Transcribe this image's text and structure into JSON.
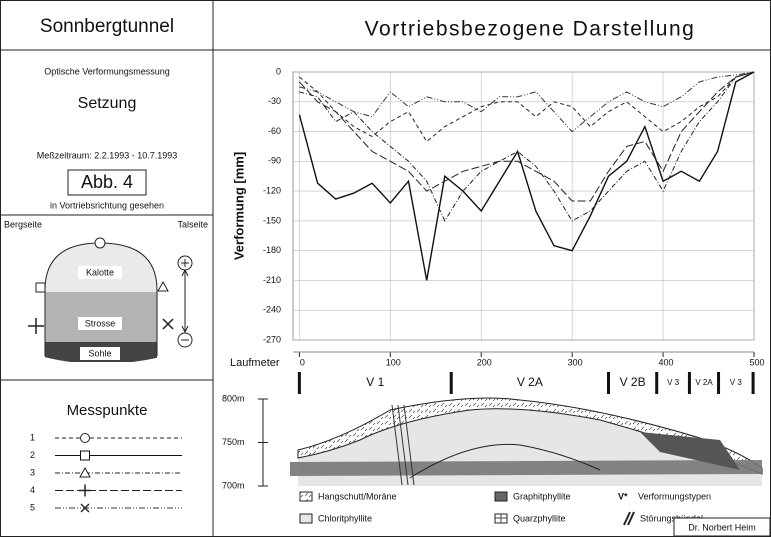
{
  "header": {
    "left_title": "Sonnbergtunnel",
    "right_title": "Vortriebsbezogene Darstellung"
  },
  "info": {
    "method": "Optische Verformungsmessung",
    "quantity": "Setzung",
    "period": "Meßzeitraum:  2.2.1993 - 10.7.1993",
    "figure": "Abb. 4",
    "direction": "in Vortriebsrichtung gesehen"
  },
  "section": {
    "left": "Bergseite",
    "right": "Talseite",
    "top": "Kalotte",
    "middle": "Strosse",
    "bottom": "Sohle"
  },
  "legend_title": "Messpunkte",
  "chart_data": {
    "type": "line",
    "y_label": "Verformung [mm]",
    "x_label": "Laufmeter",
    "x": [
      0,
      20,
      40,
      60,
      80,
      100,
      120,
      140,
      160,
      180,
      200,
      220,
      240,
      260,
      280,
      300,
      320,
      340,
      360,
      380,
      400,
      420,
      440,
      460,
      480,
      500
    ],
    "xlim": [
      -7,
      500
    ],
    "xticks": [
      0,
      100,
      200,
      300,
      400,
      500
    ],
    "ylim": [
      -270,
      0
    ],
    "yticks": [
      0,
      -30,
      -60,
      -90,
      -120,
      -150,
      -180,
      -210,
      -240,
      -270
    ],
    "grid": true,
    "series": [
      {
        "name": "1",
        "color": "#222",
        "dash": "4 3",
        "marker": "circle",
        "values": [
          -5,
          -20,
          -40,
          -55,
          -65,
          -50,
          -40,
          -70,
          -55,
          -45,
          -35,
          -30,
          -30,
          -45,
          -30,
          -35,
          -55,
          -40,
          -30,
          -45,
          -60,
          -50,
          -35,
          -25,
          -5,
          0
        ]
      },
      {
        "name": "2",
        "color": "#111",
        "dash": "",
        "marker": "square",
        "values": [
          -43,
          -112,
          -128,
          -122,
          -112,
          -132,
          -110,
          -210,
          -105,
          -120,
          -140,
          -110,
          -80,
          -140,
          -175,
          -180,
          -145,
          -105,
          -90,
          -55,
          -110,
          -100,
          -110,
          -80,
          -10,
          0
        ]
      },
      {
        "name": "3",
        "color": "#222",
        "dash": "5 2 1 2",
        "marker": "triangle",
        "values": [
          -20,
          -25,
          -50,
          -40,
          -60,
          -75,
          -90,
          -110,
          -150,
          -120,
          -100,
          -90,
          -80,
          -95,
          -120,
          -150,
          -140,
          -120,
          -100,
          -90,
          -120,
          -80,
          -50,
          -30,
          -5,
          0
        ]
      },
      {
        "name": "4",
        "color": "#222",
        "dash": "8 3",
        "marker": "cross",
        "values": [
          -10,
          -30,
          -40,
          -60,
          -80,
          -90,
          -100,
          -120,
          -110,
          -100,
          -95,
          -90,
          -90,
          -100,
          -110,
          -130,
          -130,
          -100,
          -75,
          -70,
          -100,
          -60,
          -40,
          -20,
          -5,
          0
        ]
      },
      {
        "name": "5",
        "color": "#333",
        "dash": "6 2 1 2 1 2",
        "marker": "x",
        "values": [
          -15,
          -20,
          -30,
          -40,
          -45,
          -20,
          -35,
          -25,
          -30,
          -30,
          -40,
          -25,
          -25,
          -20,
          -40,
          -60,
          -45,
          -30,
          -20,
          -30,
          -35,
          -25,
          -10,
          -5,
          -3,
          0
        ]
      }
    ],
    "zones": [
      {
        "label": "V 1",
        "from": 0,
        "to": 167
      },
      {
        "label": "V 2A",
        "from": 167,
        "to": 340
      },
      {
        "label": "V 2B",
        "from": 340,
        "to": 393
      },
      {
        "label": "V 3",
        "from": 393,
        "to": 429
      },
      {
        "label": "V 2A",
        "from": 429,
        "to": 461
      },
      {
        "label": "V 3",
        "from": 461,
        "to": 499
      }
    ]
  },
  "profile": {
    "ylim": [
      700,
      800
    ],
    "yticks": [
      {
        "value": 800,
        "label": "800m"
      },
      {
        "value": 750,
        "label": "750m"
      },
      {
        "value": 700,
        "label": "700m"
      }
    ],
    "legend": {
      "scree": "Hangschutt/Moräne",
      "graphite": "Graphitphyllite",
      "types_symbol": "V*",
      "types": "Verformungstypen",
      "chlorite": "Chloritphyllite",
      "quartz": "Quarzphyllite",
      "fault": "Störungsbündel"
    },
    "author": "Dr. Norbert Heim"
  }
}
